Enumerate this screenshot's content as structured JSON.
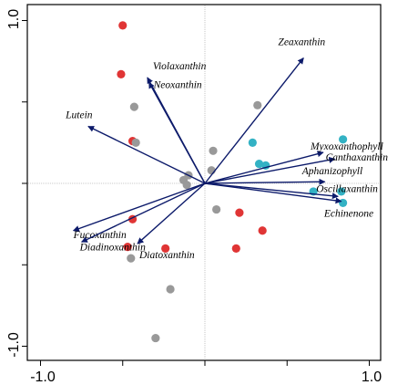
{
  "chart_data": {
    "type": "scatter",
    "title": "",
    "xlabel": "",
    "ylabel": "",
    "xlim": [
      -1.05,
      1.05
    ],
    "ylim": [
      -1.05,
      1.05
    ],
    "x_ticks": [
      "-1.0",
      "1.0"
    ],
    "y_ticks": [
      "1.0",
      "-1.0"
    ],
    "grid": "reference lines at x=0 and y=0",
    "colors": {
      "vector": "#0c1a6a",
      "red": "#e03535",
      "gray": "#999999",
      "cyan": "#33b2c4",
      "axes": "#000000",
      "refline": "#b8b8b8"
    },
    "vectors": [
      {
        "label": "Zeaxanthin",
        "x": 0.6,
        "y": 0.77
      },
      {
        "label": "Violaxanthin",
        "x": -0.35,
        "y": 0.65
      },
      {
        "label": "Neoxanthin",
        "x": -0.34,
        "y": 0.62
      },
      {
        "label": "Lutein",
        "x": -0.71,
        "y": 0.35
      },
      {
        "label": "Myxoxanthophyll",
        "x": 0.72,
        "y": 0.19
      },
      {
        "label": "Canthaxanthin",
        "x": 0.79,
        "y": 0.15
      },
      {
        "label": "Aphanizophyll",
        "x": 0.73,
        "y": 0.01
      },
      {
        "label": "Oscillaxanthin",
        "x": 0.81,
        "y": -0.08
      },
      {
        "label": "Echinenone",
        "x": 0.83,
        "y": -0.11
      },
      {
        "label": "Fucoxanthin",
        "x": -0.8,
        "y": -0.29
      },
      {
        "label": "Diadinoxanthin",
        "x": -0.75,
        "y": -0.36
      },
      {
        "label": "Diatoxanthin",
        "x": -0.41,
        "y": -0.37
      }
    ],
    "series": [
      {
        "color": "red",
        "points": [
          {
            "x": -0.5,
            "y": 0.97
          },
          {
            "x": -0.51,
            "y": 0.67
          },
          {
            "x": -0.44,
            "y": 0.26
          },
          {
            "x": -0.44,
            "y": -0.22
          },
          {
            "x": -0.47,
            "y": -0.39
          },
          {
            "x": -0.24,
            "y": -0.4
          },
          {
            "x": 0.21,
            "y": -0.18
          },
          {
            "x": 0.35,
            "y": -0.29
          },
          {
            "x": 0.19,
            "y": -0.4
          }
        ]
      },
      {
        "color": "gray",
        "points": [
          {
            "x": -0.43,
            "y": 0.47
          },
          {
            "x": -0.42,
            "y": 0.25
          },
          {
            "x": -0.1,
            "y": 0.05
          },
          {
            "x": -0.13,
            "y": 0.02
          },
          {
            "x": -0.11,
            "y": -0.01
          },
          {
            "x": 0.05,
            "y": 0.2
          },
          {
            "x": 0.04,
            "y": 0.08
          },
          {
            "x": 0.07,
            "y": -0.16
          },
          {
            "x": 0.32,
            "y": 0.48
          },
          {
            "x": -0.45,
            "y": -0.46
          },
          {
            "x": -0.21,
            "y": -0.65
          },
          {
            "x": -0.3,
            "y": -0.95
          }
        ]
      },
      {
        "color": "cyan",
        "points": [
          {
            "x": 0.29,
            "y": 0.25
          },
          {
            "x": 0.33,
            "y": 0.12
          },
          {
            "x": 0.37,
            "y": 0.11
          },
          {
            "x": 0.84,
            "y": 0.27
          },
          {
            "x": 0.66,
            "y": -0.05
          },
          {
            "x": 0.83,
            "y": -0.05
          },
          {
            "x": 0.84,
            "y": -0.12
          }
        ]
      }
    ]
  }
}
